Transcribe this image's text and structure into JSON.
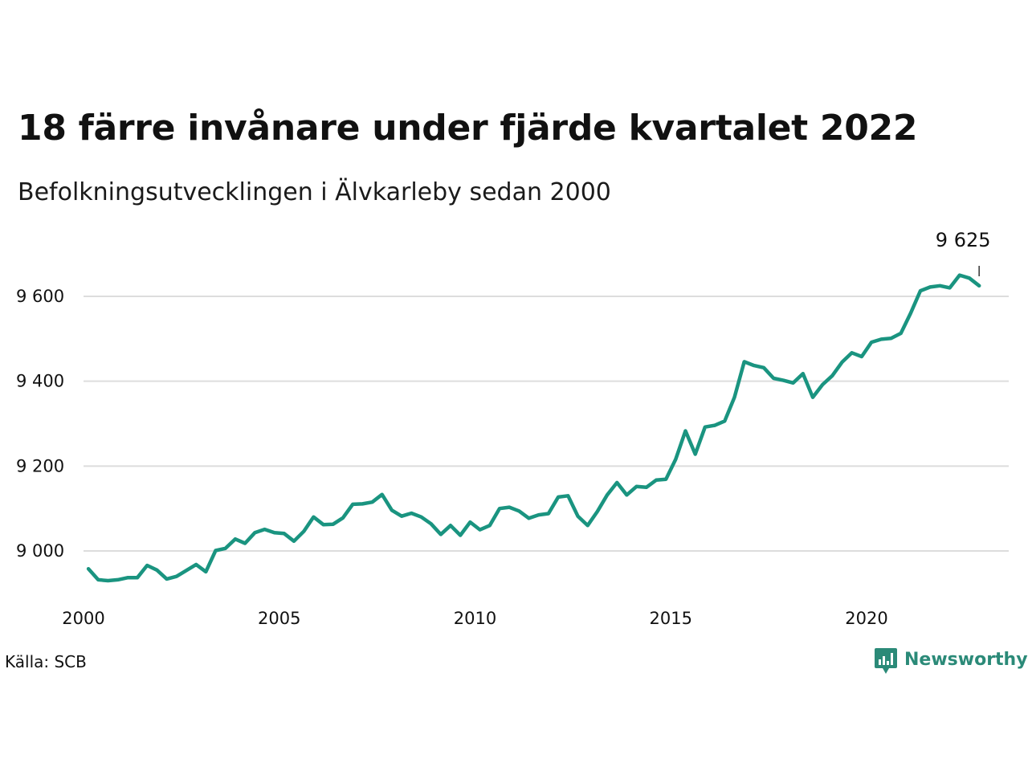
{
  "header": {
    "title": "18 färre invånare under fjärde kvartalet 2022",
    "subtitle": "Befolkningsutvecklingen i Älvkarleby sedan 2000"
  },
  "footer": {
    "source": "Källa: SCB",
    "brand": "Newsworthy"
  },
  "colors": {
    "line": "#1a9480",
    "grid": "#dddddd",
    "text": "#111111",
    "brand": "#2b8a78"
  },
  "chart_data": {
    "type": "line",
    "title": "18 färre invånare under fjärde kvartalet 2022",
    "subtitle": "Befolkningsutvecklingen i Älvkarleby sedan 2000",
    "xlabel": "",
    "ylabel": "",
    "x_ticks": [
      "2000",
      "2005",
      "2010",
      "2015",
      "2020"
    ],
    "y_ticks": [
      "9 000",
      "9 200",
      "9 400",
      "9 600"
    ],
    "ylim": [
      8880,
      9700
    ],
    "xlim": [
      2000,
      2023.9
    ],
    "grid": true,
    "legend": "none",
    "x_start": "2000-Q1",
    "x_step": "quarter",
    "series": [
      {
        "values": [
          8958,
          8932,
          8930,
          8932,
          8937,
          8937,
          8966,
          8955,
          8934,
          8940,
          8954,
          8968,
          8951,
          9001,
          9006,
          9028,
          9018,
          9043,
          9051,
          9043,
          9041,
          9023,
          9046,
          9080,
          9062,
          9063,
          9078,
          9110,
          9111,
          9115,
          9133,
          9096,
          9082,
          9089,
          9080,
          9064,
          9039,
          9060,
          9037,
          9068,
          9050,
          9060,
          9100,
          9103,
          9094,
          9077,
          9085,
          9088,
          9127,
          9130,
          9082,
          9060,
          9093,
          9132,
          9161,
          9132,
          9152,
          9150,
          9167,
          9169,
          9216,
          9283,
          9228,
          9292,
          9296,
          9306,
          9362,
          9446,
          9437,
          9432,
          9407,
          9402,
          9396,
          9418,
          9362,
          9392,
          9413,
          9445,
          9467,
          9458,
          9492,
          9499,
          9501,
          9513,
          9560,
          9613,
          9622,
          9625,
          9620,
          9650,
          9643,
          9625
        ]
      }
    ],
    "annotations": [
      {
        "label": "9 625",
        "x": "2022-Q4",
        "value": 9625
      }
    ]
  }
}
